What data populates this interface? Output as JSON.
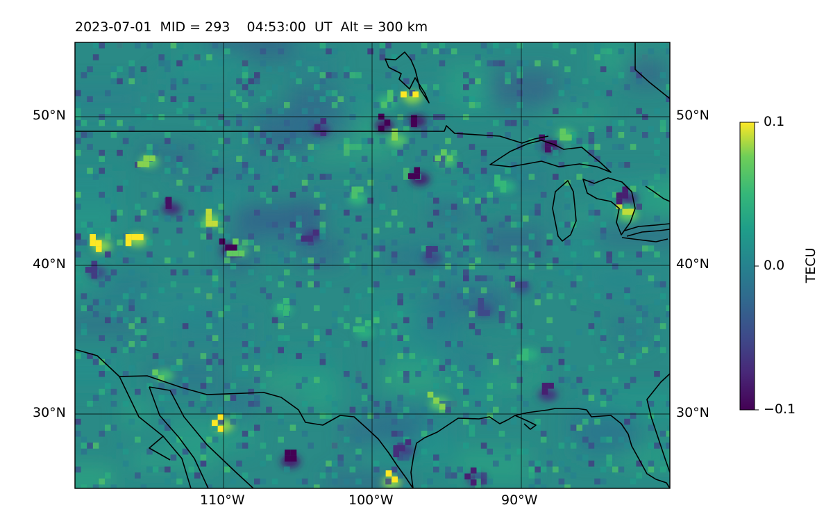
{
  "figure": {
    "title": "2023-07-01  MID = 293    04:53:00  UT  Alt = 300 km"
  },
  "map": {
    "projection": "equirectangular",
    "lon_range": [
      -120,
      -80
    ],
    "lat_range": [
      25,
      55
    ],
    "background_color": "#2a8a86",
    "field_colormap": "viridis",
    "gridlines": true,
    "latitude_labels": [
      "50°N",
      "40°N",
      "30°N"
    ],
    "latitude_values": [
      50,
      40,
      30
    ],
    "longitude_labels": [
      "110°W",
      "100°W",
      "90°W"
    ],
    "longitude_values": [
      -110,
      -100,
      -90
    ]
  },
  "colorbar": {
    "label": "TECU",
    "max_label": "0.1",
    "mid_label": "0.0",
    "min_label": "−0.1",
    "range": [
      -0.1,
      0.1
    ]
  },
  "chart_data": {
    "type": "heatmap",
    "title": "2023-07-01  MID = 293    04:53:00  UT  Alt = 300 km",
    "xlabel": "",
    "ylabel": "",
    "colorbar_label": "TECU",
    "value_range": [
      -0.1,
      0.1
    ],
    "grid": true,
    "highlights": [
      {
        "lon": -97.3,
        "lat": 51.3,
        "value": 0.1
      },
      {
        "lon": -98.3,
        "lat": 48.4,
        "value": 0.08
      },
      {
        "lon": -95.0,
        "lat": 47.0,
        "value": 0.07
      },
      {
        "lon": -115.8,
        "lat": 41.7,
        "value": 0.1
      },
      {
        "lon": -118.2,
        "lat": 41.3,
        "value": 0.1
      },
      {
        "lon": -110.8,
        "lat": 43.0,
        "value": 0.09
      },
      {
        "lon": -110.0,
        "lat": 29.2,
        "value": 0.1
      },
      {
        "lon": -98.7,
        "lat": 25.4,
        "value": 0.1
      },
      {
        "lon": -87.0,
        "lat": 48.8,
        "value": 0.07
      },
      {
        "lon": -82.8,
        "lat": 43.4,
        "value": 0.09
      },
      {
        "lon": -95.5,
        "lat": 30.7,
        "value": 0.08
      },
      {
        "lon": -99.0,
        "lat": 51.0,
        "value": 0.06
      },
      {
        "lon": -109.0,
        "lat": 41.0,
        "value": 0.07
      },
      {
        "lon": -114.0,
        "lat": 32.6,
        "value": 0.07
      },
      {
        "lon": -101.0,
        "lat": 44.5,
        "value": 0.06
      },
      {
        "lon": -91.0,
        "lat": 45.3,
        "value": 0.05
      },
      {
        "lon": -97.0,
        "lat": 49.7,
        "value": -0.1
      },
      {
        "lon": -99.2,
        "lat": 49.4,
        "value": -0.1
      },
      {
        "lon": -96.8,
        "lat": 45.8,
        "value": -0.1
      },
      {
        "lon": -105.5,
        "lat": 26.8,
        "value": -0.1
      },
      {
        "lon": -88.0,
        "lat": 48.0,
        "value": -0.09
      },
      {
        "lon": -113.5,
        "lat": 43.8,
        "value": -0.09
      },
      {
        "lon": -109.5,
        "lat": 41.0,
        "value": -0.1
      },
      {
        "lon": -93.0,
        "lat": 25.6,
        "value": -0.08
      },
      {
        "lon": -88.2,
        "lat": 31.3,
        "value": -0.08
      },
      {
        "lon": -82.8,
        "lat": 44.5,
        "value": -0.08
      },
      {
        "lon": -97.8,
        "lat": 27.5,
        "value": -0.07
      },
      {
        "lon": -103.5,
        "lat": 49.1,
        "value": -0.07
      },
      {
        "lon": -104.0,
        "lat": 42.0,
        "value": -0.07
      },
      {
        "lon": -96.0,
        "lat": 40.5,
        "value": -0.06
      },
      {
        "lon": -92.5,
        "lat": 37.0,
        "value": -0.05
      },
      {
        "lon": -118.5,
        "lat": 39.5,
        "value": -0.06
      },
      {
        "lon": -90.0,
        "lat": 38.5,
        "value": -0.05
      },
      {
        "lon": -100.5,
        "lat": 35.5,
        "value": 0.05
      },
      {
        "lon": -89.5,
        "lat": 34.0,
        "value": 0.05
      },
      {
        "lon": -115.0,
        "lat": 47.0,
        "value": 0.08
      },
      {
        "lon": -106.0,
        "lat": 37.0,
        "value": 0.05
      }
    ]
  }
}
